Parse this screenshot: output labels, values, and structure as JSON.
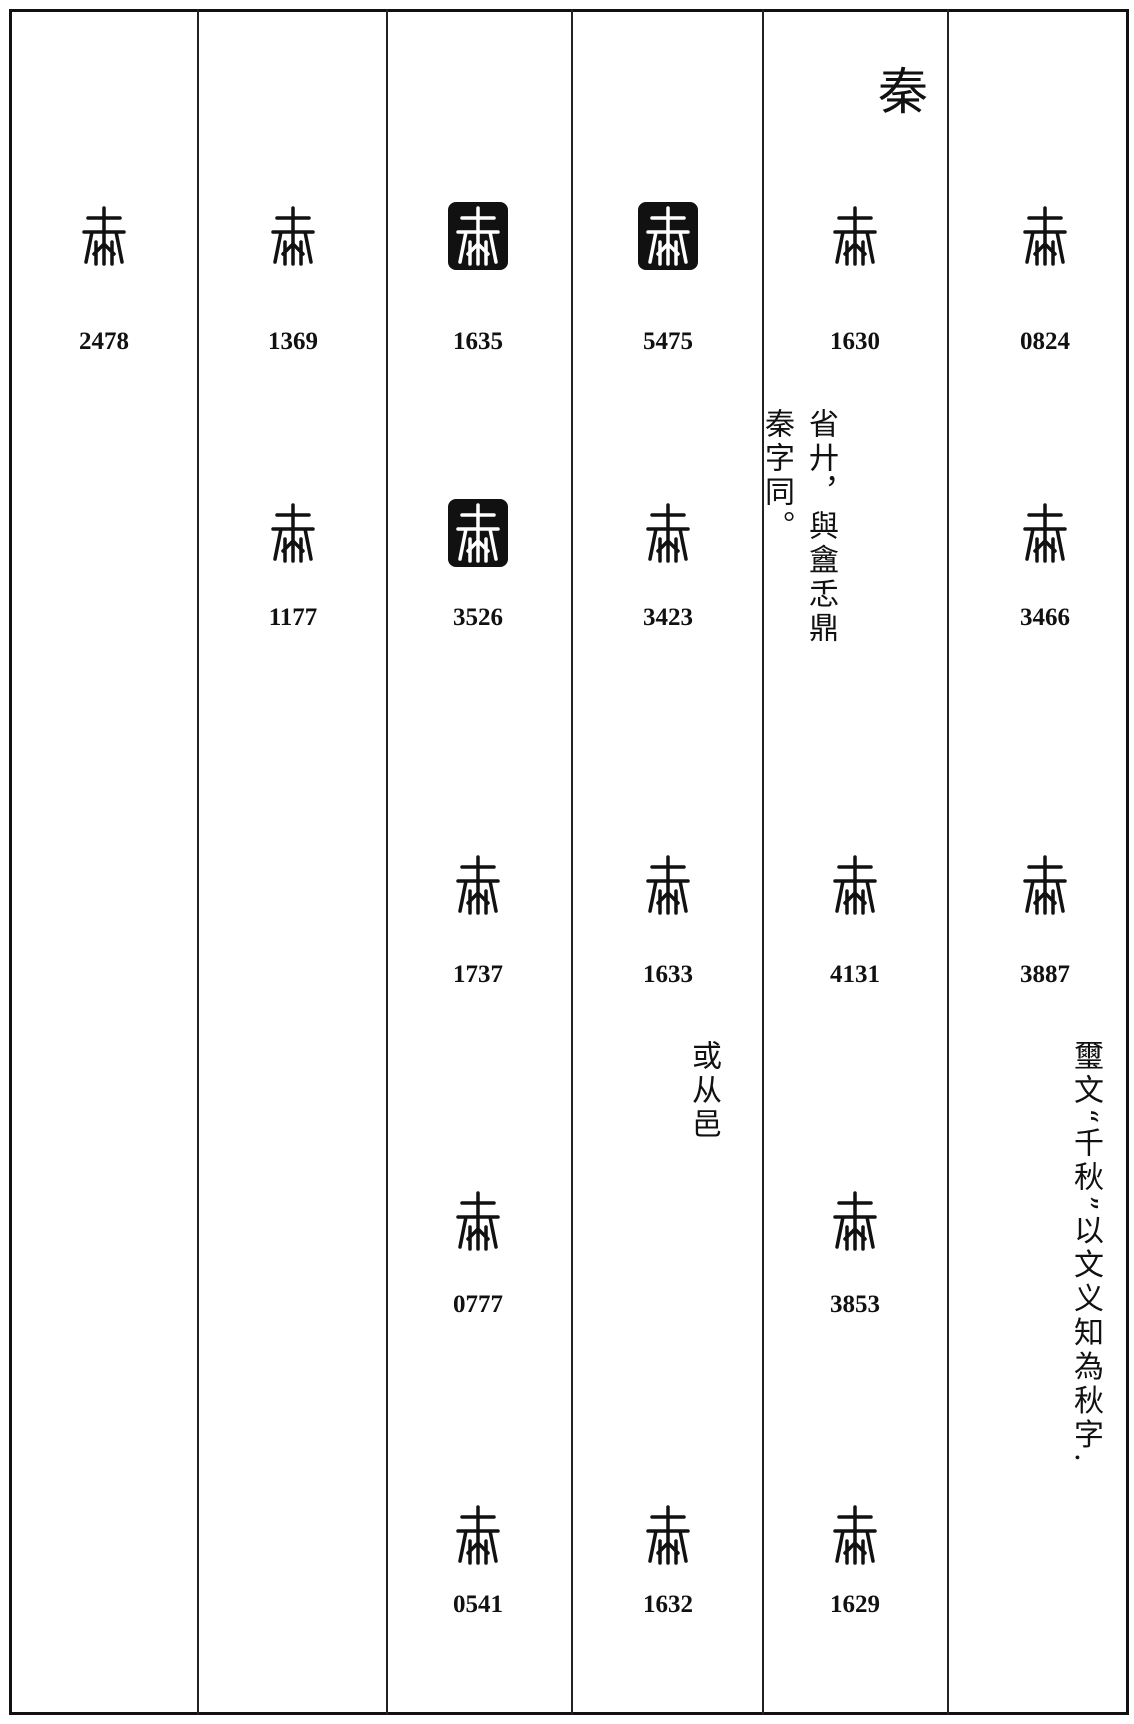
{
  "header": {
    "title": "秦"
  },
  "columns": [
    {
      "entries": [
        "2478"
      ]
    },
    {
      "entries": [
        "1369",
        "1177"
      ]
    },
    {
      "entries": [
        "1635",
        "3526",
        "1737",
        "0777",
        "0541"
      ]
    },
    {
      "entries": [
        "5475",
        "3423",
        "1633",
        "1632"
      ],
      "note": [
        "或从邑"
      ]
    },
    {
      "entries": [
        "1630",
        "4131",
        "3853",
        "1629"
      ],
      "note": [
        "省廾，與盦忎鼎",
        "秦字同。"
      ]
    },
    {
      "entries": [
        "0824",
        "3466",
        "3887"
      ],
      "note": [
        "璽文“千秋”以文义知為秋字."
      ]
    }
  ]
}
